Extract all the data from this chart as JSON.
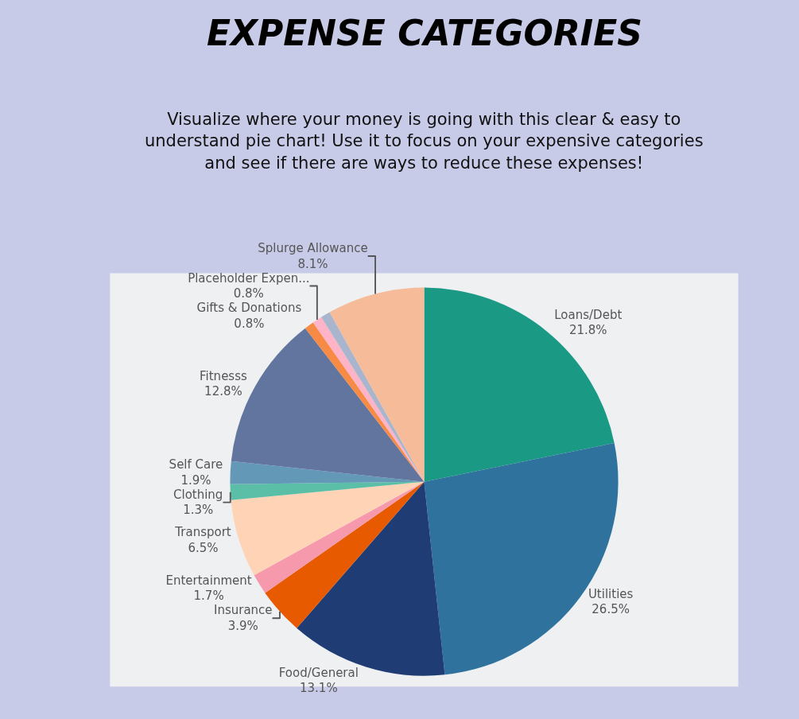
{
  "chart_data": {
    "type": "pie",
    "title": "EXPENSE CATEGORIES",
    "subtitle": "Visualize where your money is going with this clear & easy to\nunderstand pie chart! Use it to focus on your expensive categories\nand see if there are ways to reduce these expenses!",
    "categories": [
      "Loans/Debt",
      "Utilities",
      "Food/General",
      "Insurance",
      "Entertainment",
      "Transport",
      "Clothing",
      "Self Care",
      "Fitnesss",
      "Gifts & Donations",
      "Placeholder Expen...",
      null,
      "Splurge Allowance"
    ],
    "values": [
      21.8,
      26.5,
      13.1,
      3.9,
      1.7,
      6.5,
      1.3,
      1.9,
      12.8,
      0.8,
      0.8,
      0.8,
      8.1
    ],
    "value_labels": [
      "21.8%",
      "26.5%",
      "13.1%",
      "3.9%",
      "1.7%",
      "6.5%",
      "1.3%",
      "1.9%",
      "12.8%",
      "0.8%",
      "0.8%",
      null,
      "8.1%"
    ],
    "colors": [
      "#1a9985",
      "#2e729d",
      "#1f3d74",
      "#e85a00",
      "#f799ac",
      "#ffd3b5",
      "#5bbfa8",
      "#6399b7",
      "#62759f",
      "#f78a45",
      "#ffb3c6",
      "#a8b5cc",
      "#f6bb98"
    ],
    "legend": false
  }
}
